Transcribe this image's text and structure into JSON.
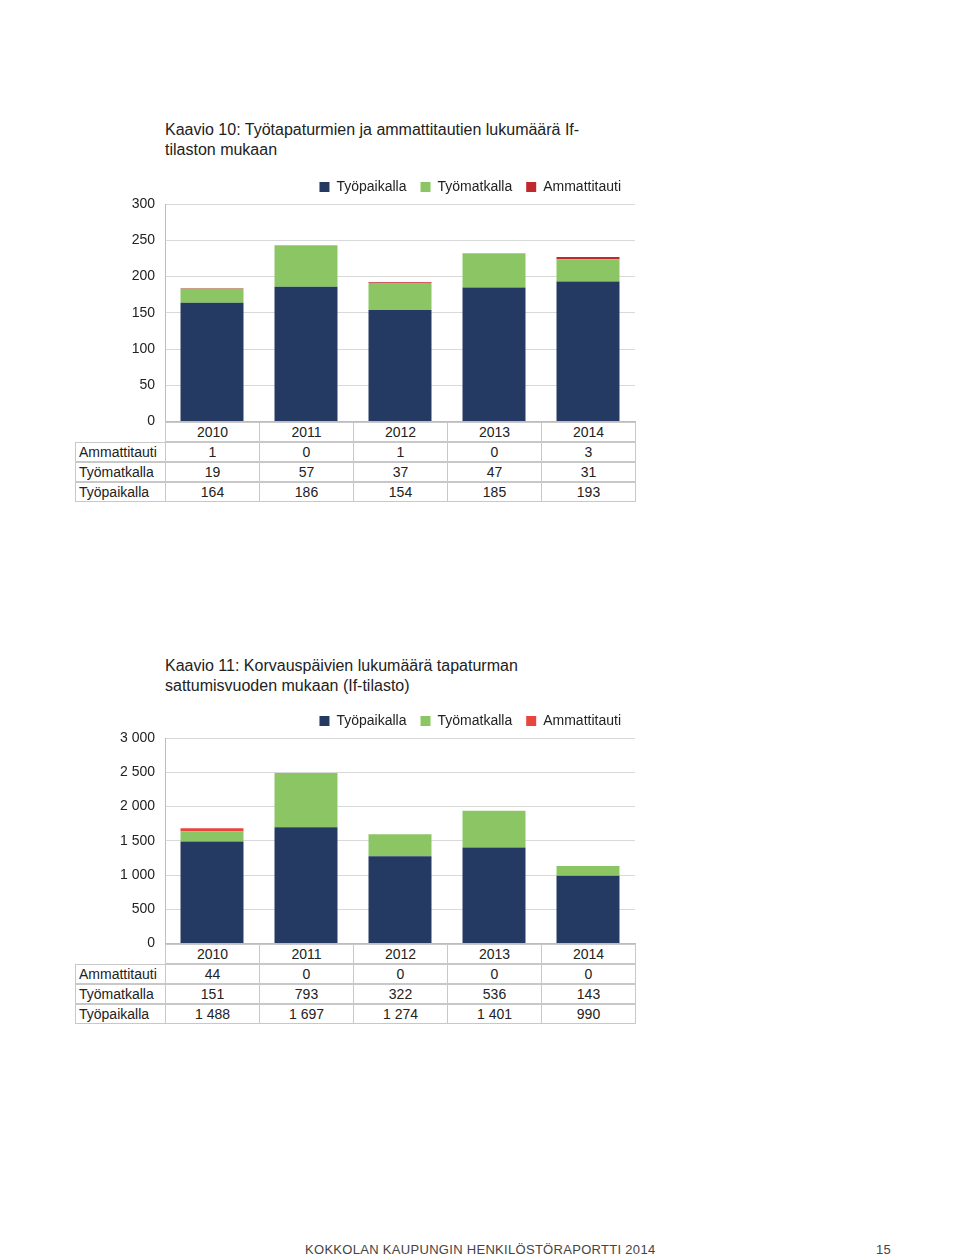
{
  "chart_data": [
    {
      "type": "bar",
      "title": "Kaavio 10: Työtapaturmien ja ammattitautien lukumäärä If-tilaston mukaan",
      "stacked": true,
      "grid": true,
      "legend": "top",
      "tick_labels": "y",
      "categories": [
        "2010",
        "2011",
        "2012",
        "2013",
        "2014"
      ],
      "ylim": [
        0,
        300
      ],
      "yticks": [
        0,
        50,
        100,
        150,
        200,
        250,
        300
      ],
      "series": [
        {
          "name": "Työpaikalla",
          "color": "#243a63",
          "values": [
            164,
            186,
            154,
            185,
            193
          ]
        },
        {
          "name": "Työmatkalla",
          "color": "#8cc664",
          "values": [
            19,
            57,
            37,
            47,
            31
          ]
        },
        {
          "name": "Ammattitauti",
          "color": "#c0282d",
          "values": [
            1,
            0,
            1,
            0,
            3
          ]
        }
      ]
    },
    {
      "type": "bar",
      "title": "Kaavio 11: Korvauspäivien lukumäärä tapaturman sattumisvuoden mukaan (If-tilasto)",
      "stacked": true,
      "grid": true,
      "legend": "top",
      "tick_labels": "y",
      "categories": [
        "2010",
        "2011",
        "2012",
        "2013",
        "2014"
      ],
      "ylim": [
        0,
        3000
      ],
      "yticks": [
        0,
        500,
        {
          "value": 1000,
          "label": "1 000"
        },
        {
          "value": 1500,
          "label": "1 500"
        },
        {
          "value": 2000,
          "label": "2 000"
        },
        {
          "value": 2500,
          "label": "2 500"
        },
        {
          "value": 3000,
          "label": "3 000"
        }
      ],
      "series": [
        {
          "name": "Työpaikalla",
          "color": "#243a63",
          "values": [
            1488,
            1697,
            1274,
            1401,
            990
          ],
          "value_labels": [
            "1 488",
            "1 697",
            "1 274",
            "1 401",
            "990"
          ]
        },
        {
          "name": "Työmatkalla",
          "color": "#8cc664",
          "values": [
            151,
            793,
            322,
            536,
            143
          ]
        },
        {
          "name": "Ammattitauti",
          "color": "#e8453c",
          "values": [
            44,
            0,
            0,
            0,
            0
          ]
        }
      ]
    }
  ],
  "footer": {
    "text": "KOKKOLAN KAUPUNGIN HENKILÖSTÖRAPORTTI 2014",
    "page": 15
  }
}
